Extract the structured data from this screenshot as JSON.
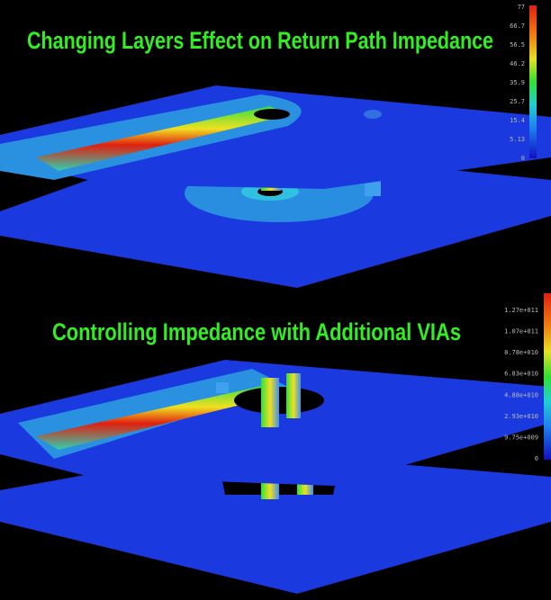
{
  "panels": [
    {
      "title": "Changing Layers Effect on Return Path Impedance",
      "scale_labels": [
        "77",
        "66.7",
        "56.5",
        "46.2",
        "35.9",
        "25.7",
        "15.4",
        "5.13",
        "0"
      ]
    },
    {
      "title": "Controlling Impedance with Additional VIAs",
      "scale_labels": [
        "1.27e+011",
        "1.07e+011",
        "8.78e+010",
        "6.83e+010",
        "4.88e+010",
        "2.93e+010",
        "9.75e+009",
        "0"
      ]
    }
  ]
}
